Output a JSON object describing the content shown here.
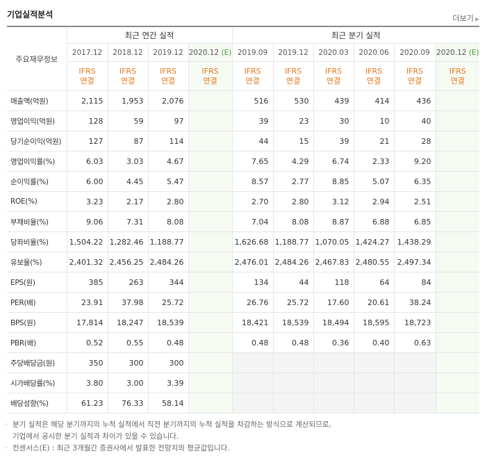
{
  "header": {
    "title": "기업실적분석",
    "more": "더보기"
  },
  "table": {
    "row_header": "주요재무정보",
    "groups": [
      "최근 연간 실적",
      "최근 분기 실적"
    ],
    "periods": [
      {
        "label": "2017.12"
      },
      {
        "label": "2018.12"
      },
      {
        "label": "2019.12"
      },
      {
        "label": "2020.12",
        "estimate": "(E)"
      },
      {
        "label": "2019.09"
      },
      {
        "label": "2019.12"
      },
      {
        "label": "2020.03"
      },
      {
        "label": "2020.06"
      },
      {
        "label": "2020.09"
      },
      {
        "label": "2020.12",
        "estimate": "(E)"
      }
    ],
    "standard": [
      [
        "IFRS",
        "연결"
      ],
      [
        "IFRS",
        "연결"
      ],
      [
        "IFRS",
        "연결"
      ],
      [
        "IFRS",
        "연결"
      ],
      [
        "IFRS",
        "연결"
      ],
      [
        "IFRS",
        "연결"
      ],
      [
        "IFRS",
        "연결"
      ],
      [
        "IFRS",
        "연결"
      ],
      [
        "IFRS",
        "연결"
      ],
      [
        "IFRS",
        "연결"
      ]
    ],
    "rows": [
      {
        "label": "매출액(억원)",
        "values": [
          "2,115",
          "1,953",
          "2,076",
          null,
          "516",
          "530",
          "439",
          "414",
          "436",
          null
        ]
      },
      {
        "label": "영업이익(억원)",
        "values": [
          "128",
          "59",
          "97",
          null,
          "39",
          "23",
          "30",
          "10",
          "40",
          null
        ]
      },
      {
        "label": "당기순이익(억원)",
        "values": [
          "127",
          "87",
          "114",
          null,
          "44",
          "15",
          "39",
          "21",
          "28",
          null
        ]
      },
      {
        "label": "영업이익률(%)",
        "values": [
          "6.03",
          "3.03",
          "4.67",
          null,
          "7.65",
          "4.29",
          "6.74",
          "2.33",
          "9.20",
          null
        ]
      },
      {
        "label": "순이익률(%)",
        "values": [
          "6.00",
          "4.45",
          "5.47",
          null,
          "8.57",
          "2.77",
          "8.85",
          "5.07",
          "6.35",
          null
        ]
      },
      {
        "label": "ROE(%)",
        "values": [
          "3.23",
          "2.17",
          "2.80",
          null,
          "2.70",
          "2.80",
          "3.12",
          "2.94",
          "2.51",
          null
        ]
      },
      {
        "label": "부채비율(%)",
        "values": [
          "9.06",
          "7.31",
          "8.08",
          null,
          "7.04",
          "8.08",
          "8.87",
          "6.88",
          "6.85",
          null
        ]
      },
      {
        "label": "당좌비율(%)",
        "values": [
          "1,504.22",
          "1,282.46",
          "1,188.77",
          null,
          "1,626.68",
          "1,188.77",
          "1,070.05",
          "1,424.27",
          "1,438.29",
          null
        ]
      },
      {
        "label": "유보율(%)",
        "values": [
          "2,401.32",
          "2,456.25",
          "2,484.26",
          null,
          "2,476.01",
          "2,484.26",
          "2,467.83",
          "2,480.55",
          "2,497.34",
          null
        ]
      },
      {
        "label": "EPS(원)",
        "values": [
          "385",
          "263",
          "344",
          null,
          "134",
          "44",
          "118",
          "64",
          "84",
          null
        ]
      },
      {
        "label": "PER(배)",
        "values": [
          "23.91",
          "37.98",
          "25.72",
          null,
          "26.76",
          "25.72",
          "17.60",
          "20.61",
          "38.24",
          null
        ]
      },
      {
        "label": "BPS(원)",
        "values": [
          "17,814",
          "18,247",
          "18,539",
          null,
          "18,421",
          "18,539",
          "18,494",
          "18,595",
          "18,723",
          null
        ]
      },
      {
        "label": "PBR(배)",
        "values": [
          "0.52",
          "0.55",
          "0.48",
          null,
          "0.48",
          "0.48",
          "0.36",
          "0.40",
          "0.63",
          null
        ]
      },
      {
        "label": "주당배당금(원)",
        "values": [
          "350",
          "300",
          "300",
          null,
          null,
          null,
          null,
          null,
          null,
          null
        ]
      },
      {
        "label": "시가배당률(%)",
        "values": [
          "3.80",
          "3.00",
          "3.39",
          null,
          null,
          null,
          null,
          null,
          null,
          null
        ]
      },
      {
        "label": "배당성향(%)",
        "values": [
          "61.23",
          "76.33",
          "58.14",
          null,
          null,
          null,
          null,
          null,
          null,
          null
        ]
      }
    ]
  },
  "notes": [
    [
      "분기 실적은 해당 분기까지의 누적 실적에서 직전 분기까지의 누적 실적을 차감하는 방식으로 계산되므로,",
      "기업에서 공시한 분기 실적과 차이가 있을 수 있습니다."
    ],
    [
      "컨센서스(E) : 최근 3개월간 증권사에서 발표한 전망치의 평균값입니다."
    ]
  ]
}
